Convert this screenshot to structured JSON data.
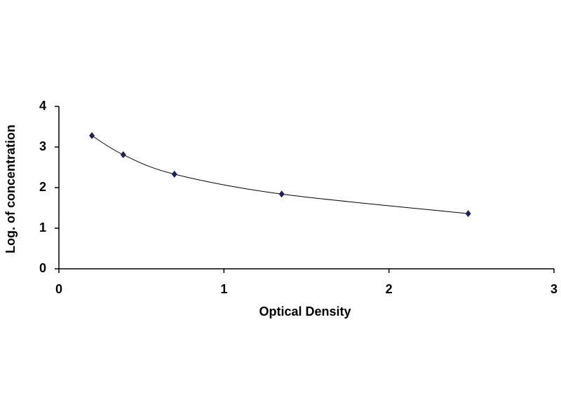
{
  "chart_data": {
    "type": "scatter",
    "x_label": "Optical Density",
    "y_label": "Log. of concentration",
    "x": [
      0.2,
      0.39,
      0.7,
      1.35,
      2.48
    ],
    "values": [
      3.28,
      2.81,
      2.33,
      1.84,
      1.36
    ],
    "color": "#1f1f5f",
    "trendline": true,
    "xlim": [
      0,
      3
    ],
    "xticks": [
      0,
      1,
      2,
      3
    ],
    "ylim": [
      0,
      4
    ],
    "yticks": [
      0,
      1,
      2,
      3,
      4
    ]
  }
}
